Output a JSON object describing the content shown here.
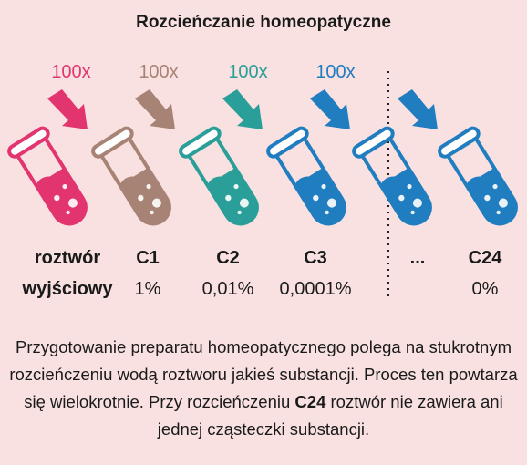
{
  "title": "Rozcieńczanie homeopatyczne",
  "colors": {
    "background": "#f9e1e1",
    "pink": "#e2356f",
    "brown": "#a68374",
    "teal": "#2a9e98",
    "blue": "#1f7dc0"
  },
  "steps": [
    {
      "multiplier": "100x",
      "color": "#e2356f"
    },
    {
      "multiplier": "100x",
      "color": "#a68374"
    },
    {
      "multiplier": "100x",
      "color": "#2a9e98"
    },
    {
      "multiplier": "100x",
      "color": "#1f7dc0"
    }
  ],
  "columns": [
    {
      "label_line1": "roztwór",
      "label_line2": "wyjściowy",
      "percent": ""
    },
    {
      "label_line1": "C1",
      "percent": "1%"
    },
    {
      "label_line1": "C2",
      "percent": "0,01%"
    },
    {
      "label_line1": "C3",
      "percent": "0,0001%"
    },
    {
      "label_line1": "...",
      "percent": ""
    },
    {
      "label_line1": "C24",
      "percent": "0%"
    }
  ],
  "description": {
    "part1": "Przygotowanie preparatu homeopatycznego polega na stukrotnym rozcieńczeniu wodą roztworu jakieś substancji. Proces ten powtarza się wielokrotnie. Przy rozcieńczeniu ",
    "bold": "C24",
    "part2": " roztwór nie zawiera ani jednej cząsteczki substancji."
  }
}
